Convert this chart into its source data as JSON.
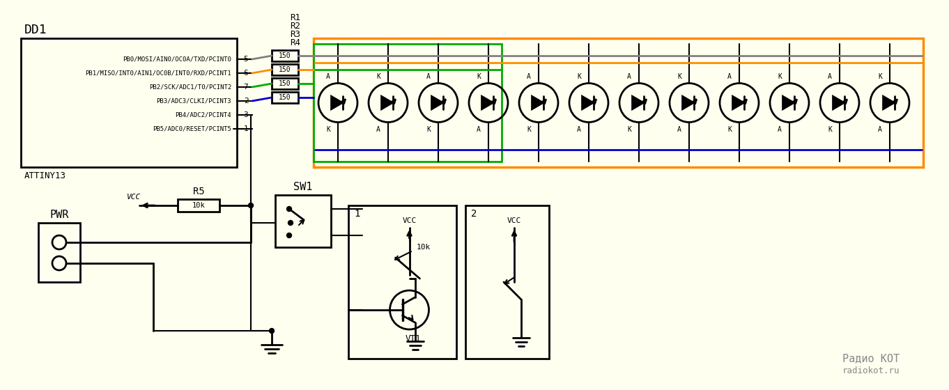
{
  "bg_color": "#FFFFF0",
  "line_color": "#000000",
  "wire_gray": "#808080",
  "wire_orange": "#FF8C00",
  "wire_green": "#00AA00",
  "wire_blue": "#0000CC",
  "resistor_color": "#000000",
  "title": "",
  "dd1_label": "DD1",
  "dd1_sublabel": "ATTINY13",
  "pin_labels": [
    "PB0/MOSI/AIN0/OC0A/TXD/PCINT0",
    "PB1/MISO/INT0/AIN1/OC0B/INT0/RXD/PCINT1",
    "PB2/SCK/ADC1/T0/PCINT2",
    "PB3/ADC3/CLKI/PCINT3",
    "PB4/ADC2/PCINT4",
    "PB5/ADC0/RESET/PCINT5"
  ],
  "pin_numbers_right": [
    "5",
    "6",
    "7",
    "2",
    "3",
    "1"
  ],
  "r_labels": [
    "R1",
    "R2",
    "R3",
    "R4"
  ],
  "resistor_values": [
    "150",
    "150",
    "150",
    "150"
  ],
  "r5_label": "R5",
  "r5_value": "10k",
  "sw1_label": "SW1",
  "pwr_label": "PWR",
  "vcc_label": "VCC",
  "vt1_label": "VT1",
  "box1_label": "1",
  "box2_label": "2",
  "num_leds": 12
}
